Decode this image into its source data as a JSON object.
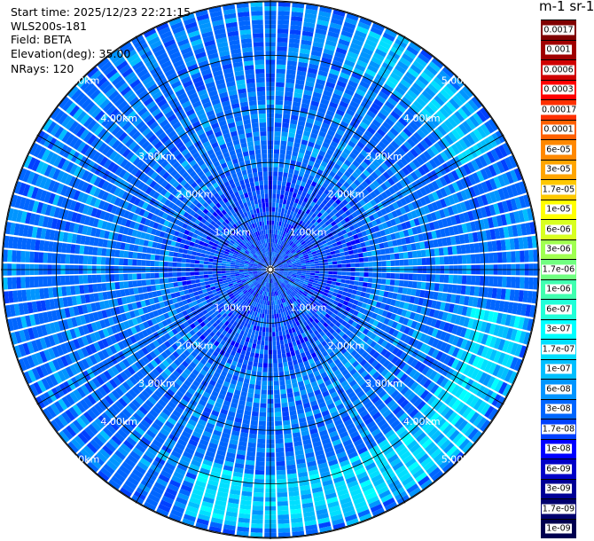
{
  "header": {
    "start_time": "Start time: 2025/12/23 22:21:15",
    "instrument": "WLS200s-181",
    "field": "Field: BETA",
    "elevation": "Elevation(deg): 35.00",
    "nrays": "NRays: 120"
  },
  "colorbar": {
    "title": "m-1 sr-1",
    "entries": [
      {
        "label": "0.0017",
        "color": "#800000"
      },
      {
        "label": "0.001",
        "color": "#a00000"
      },
      {
        "label": "0.0006",
        "color": "#d00000"
      },
      {
        "label": "0.0003",
        "color": "#ff0000"
      },
      {
        "label": "0.00017",
        "color": "#ff3000"
      },
      {
        "label": "0.0001",
        "color": "#ff6000"
      },
      {
        "label": "6e-05",
        "color": "#ff8800"
      },
      {
        "label": "3e-05",
        "color": "#ffa500"
      },
      {
        "label": "1.7e-05",
        "color": "#ffc800"
      },
      {
        "label": "1e-05",
        "color": "#ffff00"
      },
      {
        "label": "6e-06",
        "color": "#d8ff20"
      },
      {
        "label": "3e-06",
        "color": "#a0ff50"
      },
      {
        "label": "1.7e-06",
        "color": "#70ff80"
      },
      {
        "label": "1e-06",
        "color": "#40ffb0"
      },
      {
        "label": "6e-07",
        "color": "#20ffd8"
      },
      {
        "label": "3e-07",
        "color": "#00ffff"
      },
      {
        "label": "1.7e-07",
        "color": "#00dfff"
      },
      {
        "label": "1e-07",
        "color": "#00bfff"
      },
      {
        "label": "6e-08",
        "color": "#0095ff"
      },
      {
        "label": "3e-08",
        "color": "#0066ff"
      },
      {
        "label": "1.7e-08",
        "color": "#0040ff"
      },
      {
        "label": "1e-08",
        "color": "#0000ff"
      },
      {
        "label": "6e-09",
        "color": "#0000c8"
      },
      {
        "label": "3e-09",
        "color": "#000096"
      },
      {
        "label": "1.7e-09",
        "color": "#00006e"
      },
      {
        "label": "1e-09",
        "color": "#000050"
      }
    ]
  },
  "chart_data": {
    "type": "heatmap",
    "projection": "polar-ppi",
    "n_rays": 120,
    "range_unit": "km",
    "max_range_km": 5.0,
    "range_rings_km": [
      1,
      2,
      3,
      4,
      5
    ],
    "range_ring_labels": [
      "1.00km",
      "2.00km",
      "3.00km",
      "4.00km",
      "5.00km"
    ],
    "ring_label_directions": [
      "NW",
      "NE",
      "SW",
      "SE"
    ],
    "background_beta": "1.7e-08 to 6e-08 (predominantly)",
    "enhanced_features": [
      {
        "description": "arc of higher backscatter",
        "azimuth_deg_range": [
          100,
          200
        ],
        "range_km": [
          3.8,
          4.8
        ],
        "beta": "1e-07 to 3e-07"
      },
      {
        "description": "arc of higher backscatter",
        "azimuth_deg_range": [
          20,
          60
        ],
        "range_km": [
          4.0,
          4.8
        ],
        "beta": "6e-08 to 1.7e-07"
      }
    ],
    "colorbar_title": "m-1 sr-1"
  }
}
